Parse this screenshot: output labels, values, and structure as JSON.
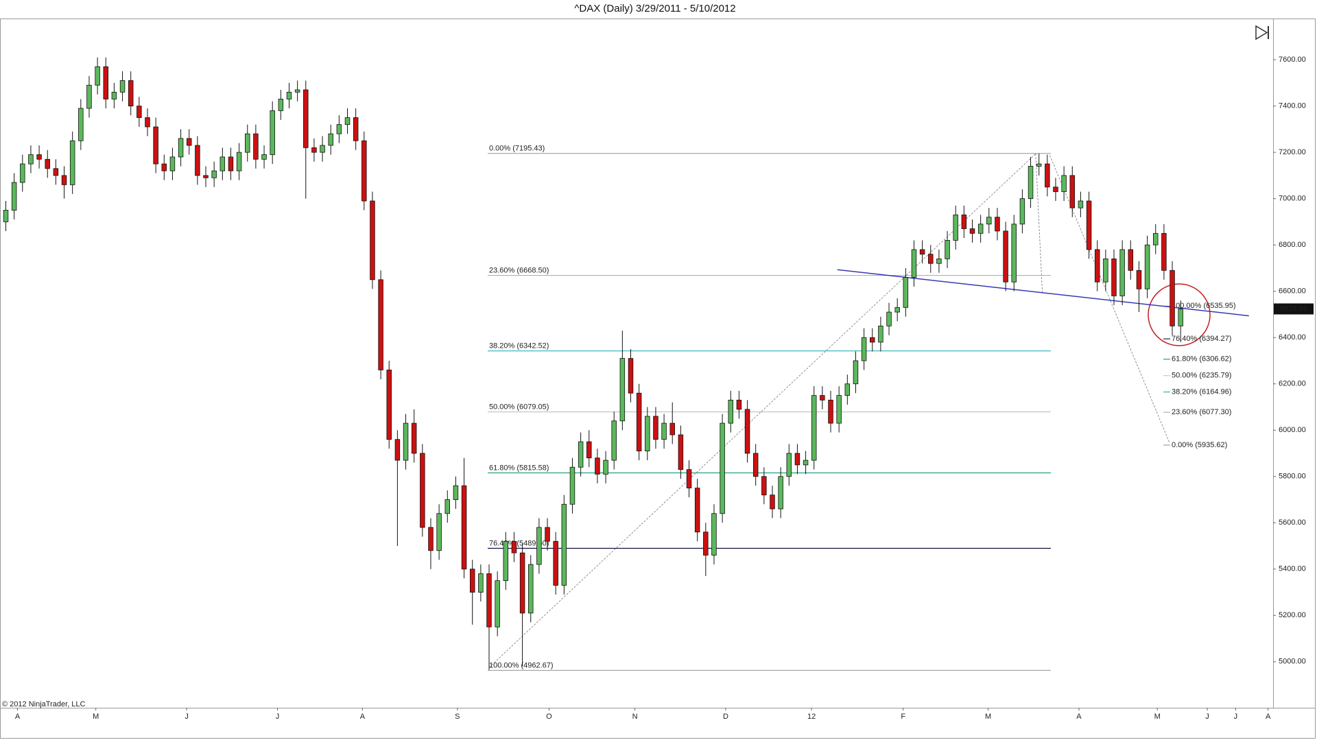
{
  "chart_data": {
    "type": "candlestick",
    "title": "^DAX (Daily)  3/29/2011 - 5/10/2012",
    "copyright": "© 2012 NinjaTrader, LLC",
    "up_color": "#5cb85c",
    "down_color": "#cc1111",
    "open": [
      6900,
      6950,
      7070,
      7150,
      7190,
      7170,
      7130,
      7100,
      7060,
      7250,
      7390,
      7490,
      7570,
      7430,
      7460,
      7510,
      7400,
      7350,
      7310,
      7150,
      7120,
      7180,
      7260,
      7230,
      7100,
      7090,
      7120,
      7180,
      7120,
      7200,
      7280,
      7170,
      7190,
      7380,
      7430,
      7460,
      7470,
      7220,
      7200,
      7230,
      7280,
      7320,
      7350,
      7250,
      6990,
      6650,
      6260,
      5960,
      5870,
      6030,
      5900,
      5580,
      5480,
      5640,
      5700,
      5760,
      5400,
      5300,
      5380,
      5150,
      5350,
      5520,
      5470,
      5210,
      5420,
      5580,
      5520,
      5330,
      5680,
      5840,
      5950,
      5880,
      5810,
      5870,
      6040,
      6310,
      6160,
      5910,
      6060,
      5960,
      6030,
      5980,
      5830,
      5750,
      5560,
      5460,
      5640,
      6030,
      6130,
      6090,
      5900,
      5800,
      5720,
      5660,
      5800,
      5900,
      5850,
      5870,
      6150,
      6130,
      6030,
      6150,
      6200,
      6300,
      6400,
      6380,
      6450,
      6510,
      6530,
      6660,
      6780,
      6760,
      6720,
      6740,
      6820,
      6930,
      6870,
      6850,
      6890,
      6920,
      6860,
      6640,
      6890,
      7000,
      7140,
      7150,
      7050,
      7030,
      7100,
      6960,
      6990,
      6780,
      6640,
      6740,
      6580,
      6780,
      6690,
      6610,
      6800,
      6850,
      6690,
      6450
    ],
    "high": [
      6990,
      7110,
      7190,
      7230,
      7230,
      7210,
      7170,
      7140,
      7290,
      7430,
      7530,
      7610,
      7610,
      7500,
      7550,
      7550,
      7440,
      7390,
      7350,
      7190,
      7220,
      7300,
      7300,
      7270,
      7140,
      7160,
      7220,
      7220,
      7240,
      7320,
      7320,
      7230,
      7420,
      7470,
      7500,
      7510,
      7510,
      7260,
      7270,
      7320,
      7360,
      7390,
      7390,
      7290,
      7030,
      6690,
      6300,
      6000,
      6070,
      6090,
      5940,
      5620,
      5680,
      5740,
      5800,
      5880,
      5440,
      5420,
      5420,
      5390,
      5560,
      5560,
      5510,
      5460,
      5620,
      5620,
      5560,
      5720,
      5880,
      5990,
      6000,
      5920,
      5910,
      6080,
      6430,
      6350,
      6200,
      6100,
      6100,
      6070,
      6120,
      6020,
      5870,
      5790,
      5600,
      5680,
      6070,
      6170,
      6170,
      6130,
      5940,
      5840,
      5760,
      5840,
      5940,
      5940,
      5910,
      6190,
      6190,
      6170,
      6190,
      6240,
      6340,
      6440,
      6440,
      6490,
      6550,
      6570,
      6700,
      6820,
      6820,
      6800,
      6780,
      6860,
      6970,
      6970,
      6910,
      6930,
      6960,
      6960,
      6900,
      6930,
      7040,
      7180,
      7195,
      7190,
      7090,
      7140,
      7140,
      7030,
      7030,
      6820,
      6780,
      6780,
      6820,
      6820,
      6730,
      6840,
      6890,
      6890,
      6730,
      6560
    ],
    "low": [
      6860,
      6910,
      7030,
      7110,
      7130,
      7090,
      7060,
      7000,
      7020,
      7210,
      7350,
      7450,
      7390,
      7390,
      7420,
      7360,
      7310,
      7270,
      7110,
      7080,
      7080,
      7140,
      7190,
      7060,
      7050,
      7050,
      7080,
      7080,
      7080,
      7160,
      7130,
      7130,
      7150,
      7340,
      7390,
      7420,
      7000,
      7160,
      7160,
      7190,
      7240,
      7280,
      7210,
      6950,
      6610,
      6220,
      5920,
      5500,
      5830,
      5860,
      5540,
      5400,
      5440,
      5600,
      5660,
      5360,
      5160,
      5260,
      4965,
      5110,
      5310,
      5430,
      4980,
      5170,
      5380,
      5480,
      5290,
      5290,
      5640,
      5800,
      5840,
      5770,
      5770,
      5830,
      6000,
      6120,
      5870,
      5870,
      5920,
      5920,
      5940,
      5790,
      5710,
      5520,
      5370,
      5420,
      5600,
      5990,
      6050,
      5860,
      5760,
      5680,
      5620,
      5620,
      5760,
      5810,
      5810,
      5830,
      6090,
      5990,
      5990,
      6110,
      6160,
      6260,
      6340,
      6340,
      6410,
      6470,
      6490,
      6620,
      6720,
      6680,
      6680,
      6700,
      6780,
      6830,
      6810,
      6810,
      6850,
      6820,
      6600,
      6600,
      6850,
      6960,
      7100,
      7010,
      6990,
      6990,
      6920,
      6920,
      6740,
      6600,
      6600,
      6540,
      6540,
      6650,
      6510,
      6570,
      6760,
      6650,
      6410,
      6380
    ],
    "close": [
      6950,
      7070,
      7150,
      7190,
      7170,
      7130,
      7100,
      7060,
      7250,
      7390,
      7490,
      7570,
      7430,
      7460,
      7510,
      7400,
      7350,
      7310,
      7150,
      7120,
      7180,
      7260,
      7230,
      7100,
      7090,
      7120,
      7180,
      7120,
      7200,
      7280,
      7170,
      7190,
      7380,
      7430,
      7460,
      7470,
      7220,
      7200,
      7230,
      7280,
      7320,
      7350,
      7250,
      6990,
      6650,
      6260,
      5960,
      5870,
      6030,
      5900,
      5580,
      5480,
      5640,
      5700,
      5760,
      5400,
      5300,
      5380,
      5150,
      5350,
      5520,
      5470,
      5210,
      5420,
      5580,
      5520,
      5330,
      5680,
      5840,
      5950,
      5880,
      5810,
      5870,
      6040,
      6310,
      6160,
      5910,
      6060,
      5960,
      6030,
      5980,
      5830,
      5750,
      5560,
      5460,
      5640,
      6030,
      6130,
      6090,
      5900,
      5800,
      5720,
      5660,
      5800,
      5900,
      5850,
      5870,
      6150,
      6130,
      6030,
      6150,
      6200,
      6300,
      6400,
      6380,
      6450,
      6510,
      6530,
      6660,
      6780,
      6760,
      6720,
      6740,
      6820,
      6930,
      6870,
      6850,
      6890,
      6920,
      6860,
      6640,
      6890,
      7000,
      7140,
      7150,
      7050,
      7030,
      7100,
      6960,
      6990,
      6780,
      6640,
      6740,
      6580,
      6780,
      6690,
      6610,
      6800,
      6850,
      6690,
      6450,
      6523.65
    ],
    "xlim": [
      -0.7,
      152.1
    ],
    "xticks": [
      {
        "value": 1.4,
        "label": "A"
      },
      {
        "value": 10.8,
        "label": "M"
      },
      {
        "value": 21.7,
        "label": "J"
      },
      {
        "value": 32.6,
        "label": "J"
      },
      {
        "value": 42.8,
        "label": "A"
      },
      {
        "value": 54.2,
        "label": "S"
      },
      {
        "value": 65.2,
        "label": "O"
      },
      {
        "value": 75.5,
        "label": "N"
      },
      {
        "value": 86.4,
        "label": "D"
      },
      {
        "value": 96.7,
        "label": "12"
      },
      {
        "value": 107.7,
        "label": "F"
      },
      {
        "value": 117.9,
        "label": "M"
      },
      {
        "value": 128.8,
        "label": "A"
      },
      {
        "value": 138.2,
        "label": "M"
      },
      {
        "value": 144.2,
        "label": "J"
      },
      {
        "value": 147.6,
        "label": "J"
      },
      {
        "value": 151.5,
        "label": "A"
      }
    ],
    "ylim": [
      4801,
      7778
    ],
    "yticks": [
      {
        "value": 5000,
        "label": "5000.00"
      },
      {
        "value": 5200,
        "label": "5200.00"
      },
      {
        "value": 5400,
        "label": "5400.00"
      },
      {
        "value": 5600,
        "label": "5600.00"
      },
      {
        "value": 5800,
        "label": "5800.00"
      },
      {
        "value": 6000,
        "label": "6000.00"
      },
      {
        "value": 6200,
        "label": "6200.00"
      },
      {
        "value": 6400,
        "label": "6400.00"
      },
      {
        "value": 6600,
        "label": "6600.00"
      },
      {
        "value": 6800,
        "label": "6800.00"
      },
      {
        "value": 7000,
        "label": "7000.00"
      },
      {
        "value": 7200,
        "label": "7200.00"
      },
      {
        "value": 7400,
        "label": "7400.00"
      },
      {
        "value": 7600,
        "label": "7600.00"
      }
    ],
    "fib_left": [
      {
        "label": "0.00% (7195.43)",
        "value": 7195.43,
        "color": "#a0a0a0"
      },
      {
        "label": "23.60% (6668.50)",
        "value": 6668.5,
        "color": "#b0b0b0"
      },
      {
        "label": "38.20% (6342.52)",
        "value": 6342.52,
        "color": "#40b8c0"
      },
      {
        "label": "50.00% (6079.05)",
        "value": 6079.05,
        "color": "#c0c0c0"
      },
      {
        "label": "61.80% (5815.58)",
        "value": 5815.58,
        "color": "#20a080"
      },
      {
        "label": "76.40% (5489.60)",
        "value": 5489.6,
        "color": "#101040"
      },
      {
        "label": "100.00% (4962.67)",
        "value": 4962.67,
        "color": "#a0a0a0"
      }
    ],
    "fib_right": [
      {
        "label": "100.00% (6535.95)",
        "value": 6535.95,
        "color": "#a0a0a0"
      },
      {
        "label": "76.40% (6394.27)",
        "value": 6394.27,
        "color": "#202050"
      },
      {
        "label": "61.80% (6306.62)",
        "value": 6306.62,
        "color": "#20a080"
      },
      {
        "label": "50.00% (6235.79)",
        "value": 6235.79,
        "color": "#c8c8c8"
      },
      {
        "label": "38.20% (6164.96)",
        "value": 6164.96,
        "color": "#30b0b0"
      },
      {
        "label": "23.60% (6077.30)",
        "value": 6077.3,
        "color": "#b0b0b0"
      },
      {
        "label": "0.00% (5935.62)",
        "value": 5935.62,
        "color": "#a0a0a0"
      }
    ],
    "trendline": {
      "color": "#3838b0",
      "points": [
        [
          99.8,
          6693
        ],
        [
          149.2,
          6494
        ]
      ]
    },
    "dashed_lines": [
      [
        [
          58.0,
          4975
        ],
        [
          123.6,
          7194
        ]
      ],
      [
        [
          123.6,
          7194
        ],
        [
          124.4,
          6596
        ]
      ],
      [
        [
          125.3,
          7187
        ],
        [
          139.7,
          5943
        ]
      ]
    ]
  }
}
